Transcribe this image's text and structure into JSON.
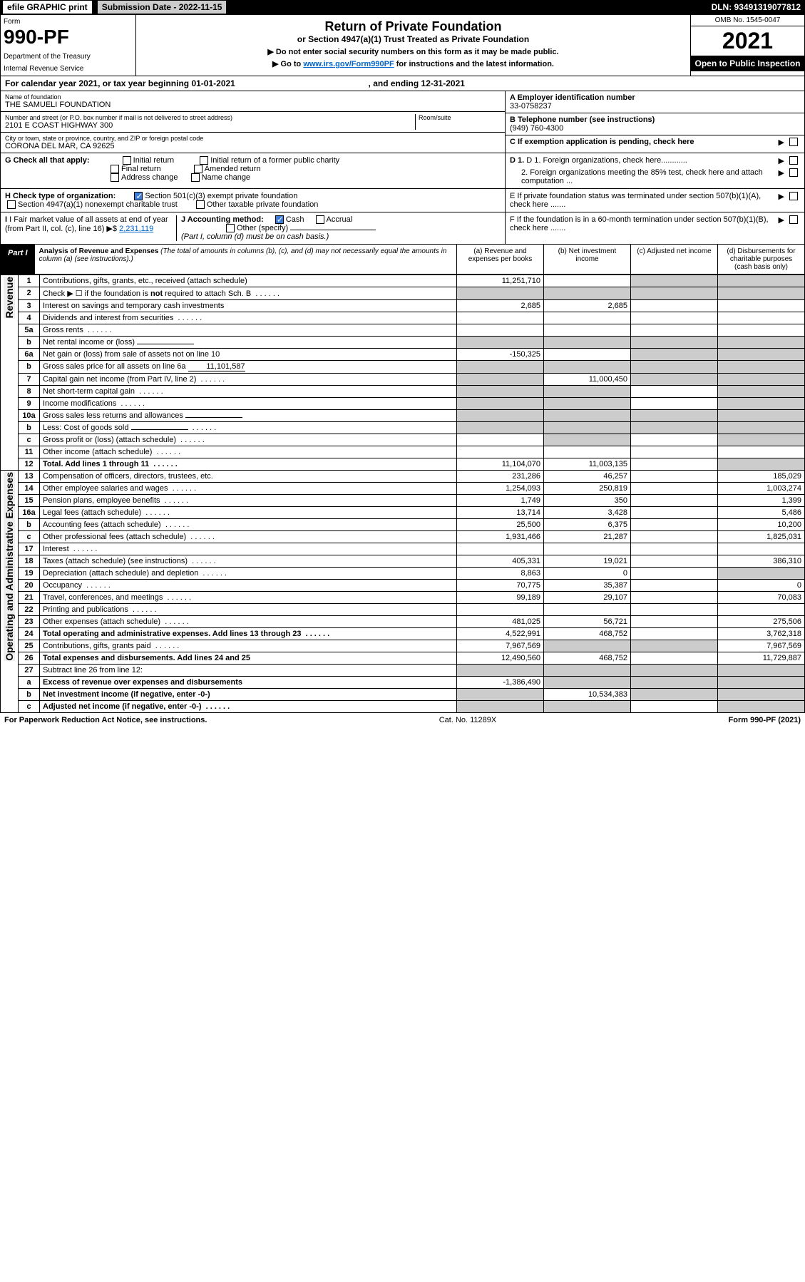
{
  "topbar": {
    "efile": "efile GRAPHIC print",
    "subdate_label": "Submission Date - 2022-11-15",
    "dln": "DLN: 93491319077812"
  },
  "header": {
    "form_word": "Form",
    "form_num": "990-PF",
    "dept": "Department of the Treasury",
    "irs": "Internal Revenue Service",
    "title": "Return of Private Foundation",
    "subtitle": "or Section 4947(a)(1) Trust Treated as Private Foundation",
    "inst1": "▶ Do not enter social security numbers on this form as it may be made public.",
    "inst2_pre": "▶ Go to ",
    "inst2_link": "www.irs.gov/Form990PF",
    "inst2_post": " for instructions and the latest information.",
    "omb": "OMB No. 1545-0047",
    "year": "2021",
    "open": "Open to Public Inspection"
  },
  "calendar": {
    "text_pre": "For calendar year 2021, or tax year beginning ",
    "begin": "01-01-2021",
    "text_mid": " , and ending ",
    "end": "12-31-2021"
  },
  "ident": {
    "name_lbl": "Name of foundation",
    "name_val": "THE SAMUELI FOUNDATION",
    "addr_lbl": "Number and street (or P.O. box number if mail is not delivered to street address)",
    "addr_val": "2101 E COAST HIGHWAY 300",
    "room_lbl": "Room/suite",
    "city_lbl": "City or town, state or province, country, and ZIP or foreign postal code",
    "city_val": "CORONA DEL MAR, CA  92625",
    "a_lbl": "A Employer identification number",
    "a_val": "33-0758237",
    "b_lbl": "B Telephone number (see instructions)",
    "b_val": "(949) 760-4300",
    "c_lbl": "C If exemption application is pending, check here",
    "d1_lbl": "D 1. Foreign organizations, check here............",
    "d2_lbl": "2. Foreign organizations meeting the 85% test, check here and attach computation ...",
    "e_lbl": "E  If private foundation status was terminated under section 507(b)(1)(A), check here .......",
    "f_lbl": "F  If the foundation is in a 60-month termination under section 507(b)(1)(B), check here .......",
    "g_lbl": "G Check all that apply:",
    "g_opts": [
      "Initial return",
      "Initial return of a former public charity",
      "Final return",
      "Amended return",
      "Address change",
      "Name change"
    ],
    "h_lbl": "H Check type of organization:",
    "h_opt1": "Section 501(c)(3) exempt private foundation",
    "h_opt2": "Section 4947(a)(1) nonexempt charitable trust",
    "h_opt3": "Other taxable private foundation",
    "i_lbl": "I Fair market value of all assets at end of year (from Part II, col. (c), line 16)",
    "i_val": "2,231,119",
    "j_lbl": "J Accounting method:",
    "j_cash": "Cash",
    "j_accrual": "Accrual",
    "j_other": "Other (specify)",
    "j_note": "(Part I, column (d) must be on cash basis.)"
  },
  "part1": {
    "label": "Part I",
    "title": "Analysis of Revenue and Expenses",
    "title_note": " (The total of amounts in columns (b), (c), and (d) may not necessarily equal the amounts in column (a) (see instructions).)",
    "col_a": "(a)   Revenue and expenses per books",
    "col_b": "(b)  Net investment income",
    "col_c": "(c)  Adjusted net income",
    "col_d": "(d)  Disbursements for charitable purposes (cash basis only)"
  },
  "sections": {
    "revenue": "Revenue",
    "expenses": "Operating and Administrative Expenses"
  },
  "rows": [
    {
      "n": "1",
      "d": "Contributions, gifts, grants, etc., received (attach schedule)",
      "a": "11,251,710",
      "sh": [
        "c",
        "d"
      ]
    },
    {
      "n": "2",
      "d": "Check ▶ ☐ if the foundation is not required to attach Sch. B",
      "dots": true,
      "sh": [
        "a",
        "b",
        "c",
        "d"
      ]
    },
    {
      "n": "3",
      "d": "Interest on savings and temporary cash investments",
      "a": "2,685",
      "b": "2,685"
    },
    {
      "n": "4",
      "d": "Dividends and interest from securities",
      "dots": true
    },
    {
      "n": "5a",
      "d": "Gross rents",
      "dots": true
    },
    {
      "n": "b",
      "d": "Net rental income or (loss)",
      "inline": "",
      "sh": [
        "a",
        "b",
        "c",
        "d"
      ]
    },
    {
      "n": "6a",
      "d": "Net gain or (loss) from sale of assets not on line 10",
      "a": "-150,325",
      "sh": [
        "c",
        "d"
      ]
    },
    {
      "n": "b",
      "d": "Gross sales price for all assets on line 6a",
      "inline": "11,101,587",
      "sh": [
        "a",
        "b",
        "c",
        "d"
      ]
    },
    {
      "n": "7",
      "d": "Capital gain net income (from Part IV, line 2)",
      "dots": true,
      "b": "11,000,450",
      "sh": [
        "a",
        "c",
        "d"
      ]
    },
    {
      "n": "8",
      "d": "Net short-term capital gain",
      "dots": true,
      "sh": [
        "a",
        "b",
        "d"
      ]
    },
    {
      "n": "9",
      "d": "Income modifications",
      "dots": true,
      "sh": [
        "a",
        "b",
        "d"
      ]
    },
    {
      "n": "10a",
      "d": "Gross sales less returns and allowances",
      "inline": "",
      "sh": [
        "a",
        "b",
        "c",
        "d"
      ]
    },
    {
      "n": "b",
      "d": "Less: Cost of goods sold",
      "dots": true,
      "inline": "",
      "sh": [
        "a",
        "b",
        "c",
        "d"
      ]
    },
    {
      "n": "c",
      "d": "Gross profit or (loss) (attach schedule)",
      "dots": true,
      "sh": [
        "b",
        "d"
      ]
    },
    {
      "n": "11",
      "d": "Other income (attach schedule)",
      "dots": true
    },
    {
      "n": "12",
      "d": "Total. Add lines 1 through 11",
      "dots": true,
      "bold": true,
      "a": "11,104,070",
      "b": "11,003,135",
      "sh": [
        "d"
      ]
    }
  ],
  "exp_rows": [
    {
      "n": "13",
      "d": "185,029",
      "a": "231,286",
      "b": "46,257"
    },
    {
      "n": "14",
      "d": "1,003,274",
      "dots": true,
      "a": "1,254,093",
      "b": "250,819"
    },
    {
      "n": "15",
      "d": "1,399",
      "dots": true,
      "a": "1,749",
      "b": "350"
    },
    {
      "n": "16a",
      "d": "5,486",
      "dots": true,
      "a": "13,714",
      "b": "3,428"
    },
    {
      "n": "b",
      "d": "10,200",
      "dots": true,
      "a": "25,500",
      "b": "6,375"
    },
    {
      "n": "c",
      "d": "1,825,031",
      "dots": true,
      "a": "1,931,466",
      "b": "21,287"
    },
    {
      "n": "17",
      "d": "Interest",
      "dots": true
    },
    {
      "n": "18",
      "d": "386,310",
      "dots": true,
      "a": "405,331",
      "b": "19,021"
    },
    {
      "n": "19",
      "d": "Depreciation (attach schedule) and depletion",
      "dots": true,
      "a": "8,863",
      "b": "0",
      "sh": [
        "d"
      ]
    },
    {
      "n": "20",
      "d": "0",
      "dots": true,
      "a": "70,775",
      "b": "35,387"
    },
    {
      "n": "21",
      "d": "70,083",
      "dots": true,
      "a": "99,189",
      "b": "29,107"
    },
    {
      "n": "22",
      "d": "Printing and publications",
      "dots": true
    },
    {
      "n": "23",
      "d": "275,506",
      "dots": true,
      "a": "481,025",
      "b": "56,721"
    },
    {
      "n": "24",
      "d": "3,762,318",
      "dots": true,
      "bold": true,
      "a": "4,522,991",
      "b": "468,752"
    },
    {
      "n": "25",
      "d": "7,967,569",
      "dots": true,
      "a": "7,967,569",
      "sh": [
        "b",
        "c"
      ]
    },
    {
      "n": "26",
      "d": "11,729,887",
      "bold": true,
      "a": "12,490,560",
      "b": "468,752"
    },
    {
      "n": "27",
      "d": "Subtract line 26 from line 12:",
      "sh": [
        "a",
        "b",
        "c",
        "d"
      ]
    },
    {
      "n": "a",
      "d": "Excess of revenue over expenses and disbursements",
      "bold": true,
      "a": "-1,386,490",
      "sh": [
        "b",
        "c",
        "d"
      ]
    },
    {
      "n": "b",
      "d": "Net investment income (if negative, enter -0-)",
      "bold": true,
      "sh": [
        "a"
      ],
      "b": "10,534,383",
      "sh2": [
        "c",
        "d"
      ]
    },
    {
      "n": "c",
      "d": "Adjusted net income (if negative, enter -0-)",
      "dots": true,
      "bold": true,
      "sh": [
        "a",
        "b",
        "d"
      ]
    }
  ],
  "footer": {
    "left": "For Paperwork Reduction Act Notice, see instructions.",
    "mid": "Cat. No. 11289X",
    "right": "Form 990-PF (2021)"
  }
}
